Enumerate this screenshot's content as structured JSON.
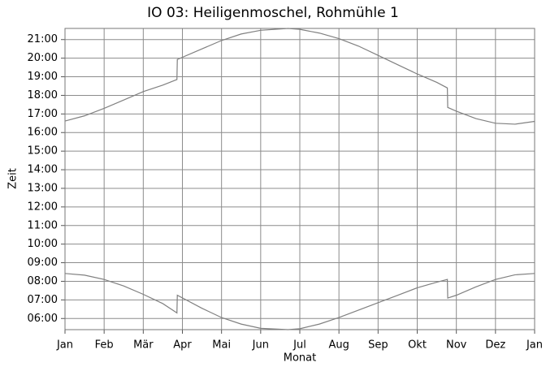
{
  "chart_data": {
    "type": "line",
    "title": "IO 03: Heiligenmoschel, Rohmühle 1",
    "x_label": "Monat",
    "y_label": "Zeit",
    "x": [
      0,
      0.5,
      1,
      1.5,
      2,
      2.5,
      2.86,
      2.87,
      3.5,
      4,
      4.5,
      5,
      5.7,
      6,
      6.5,
      7,
      7.5,
      8,
      8.5,
      9,
      9.5,
      9.77,
      9.78,
      10,
      10.5,
      11,
      11.5,
      12
    ],
    "series": [
      {
        "color": "#808080",
        "values": [
          16.62,
          16.9,
          17.3,
          17.75,
          18.2,
          18.55,
          18.85,
          19.93,
          20.5,
          20.95,
          21.3,
          21.5,
          21.6,
          21.55,
          21.35,
          21.05,
          20.65,
          20.15,
          19.65,
          19.15,
          18.7,
          18.4,
          17.35,
          17.15,
          16.75,
          16.5,
          16.45,
          16.6
        ]
      },
      {
        "color": "#808080",
        "values": [
          8.42,
          8.33,
          8.1,
          7.75,
          7.3,
          6.8,
          6.3,
          7.25,
          6.55,
          6.05,
          5.7,
          5.47,
          5.4,
          5.45,
          5.7,
          6.05,
          6.45,
          6.85,
          7.25,
          7.65,
          7.95,
          8.1,
          7.1,
          7.25,
          7.7,
          8.1,
          8.35,
          8.42
        ]
      }
    ],
    "xlim": [
      0,
      12
    ],
    "xticks": [
      {
        "value": 0,
        "label": "Jan"
      },
      {
        "value": 1,
        "label": "Feb"
      },
      {
        "value": 2,
        "label": "Mär"
      },
      {
        "value": 3,
        "label": "Apr"
      },
      {
        "value": 4,
        "label": "Mai"
      },
      {
        "value": 5,
        "label": "Jun"
      },
      {
        "value": 6,
        "label": "Jul"
      },
      {
        "value": 7,
        "label": "Aug"
      },
      {
        "value": 8,
        "label": "Sep"
      },
      {
        "value": 9,
        "label": "Okt"
      },
      {
        "value": 10,
        "label": "Nov"
      },
      {
        "value": 11,
        "label": "Dez"
      },
      {
        "value": 12,
        "label": "Jan"
      }
    ],
    "ylim": [
      5.4,
      21.6
    ],
    "yticks": [
      {
        "value": 6,
        "label": "06:00"
      },
      {
        "value": 7,
        "label": "07:00"
      },
      {
        "value": 8,
        "label": "08:00"
      },
      {
        "value": 9,
        "label": "09:00"
      },
      {
        "value": 10,
        "label": "10:00"
      },
      {
        "value": 11,
        "label": "11:00"
      },
      {
        "value": 12,
        "label": "12:00"
      },
      {
        "value": 13,
        "label": "13:00"
      },
      {
        "value": 14,
        "label": "14:00"
      },
      {
        "value": 15,
        "label": "15:00"
      },
      {
        "value": 16,
        "label": "16:00"
      },
      {
        "value": 17,
        "label": "17:00"
      },
      {
        "value": 18,
        "label": "18:00"
      },
      {
        "value": 19,
        "label": "19:00"
      },
      {
        "value": 20,
        "label": "20:00"
      },
      {
        "value": 21,
        "label": "21:00"
      }
    ],
    "grid": true
  }
}
